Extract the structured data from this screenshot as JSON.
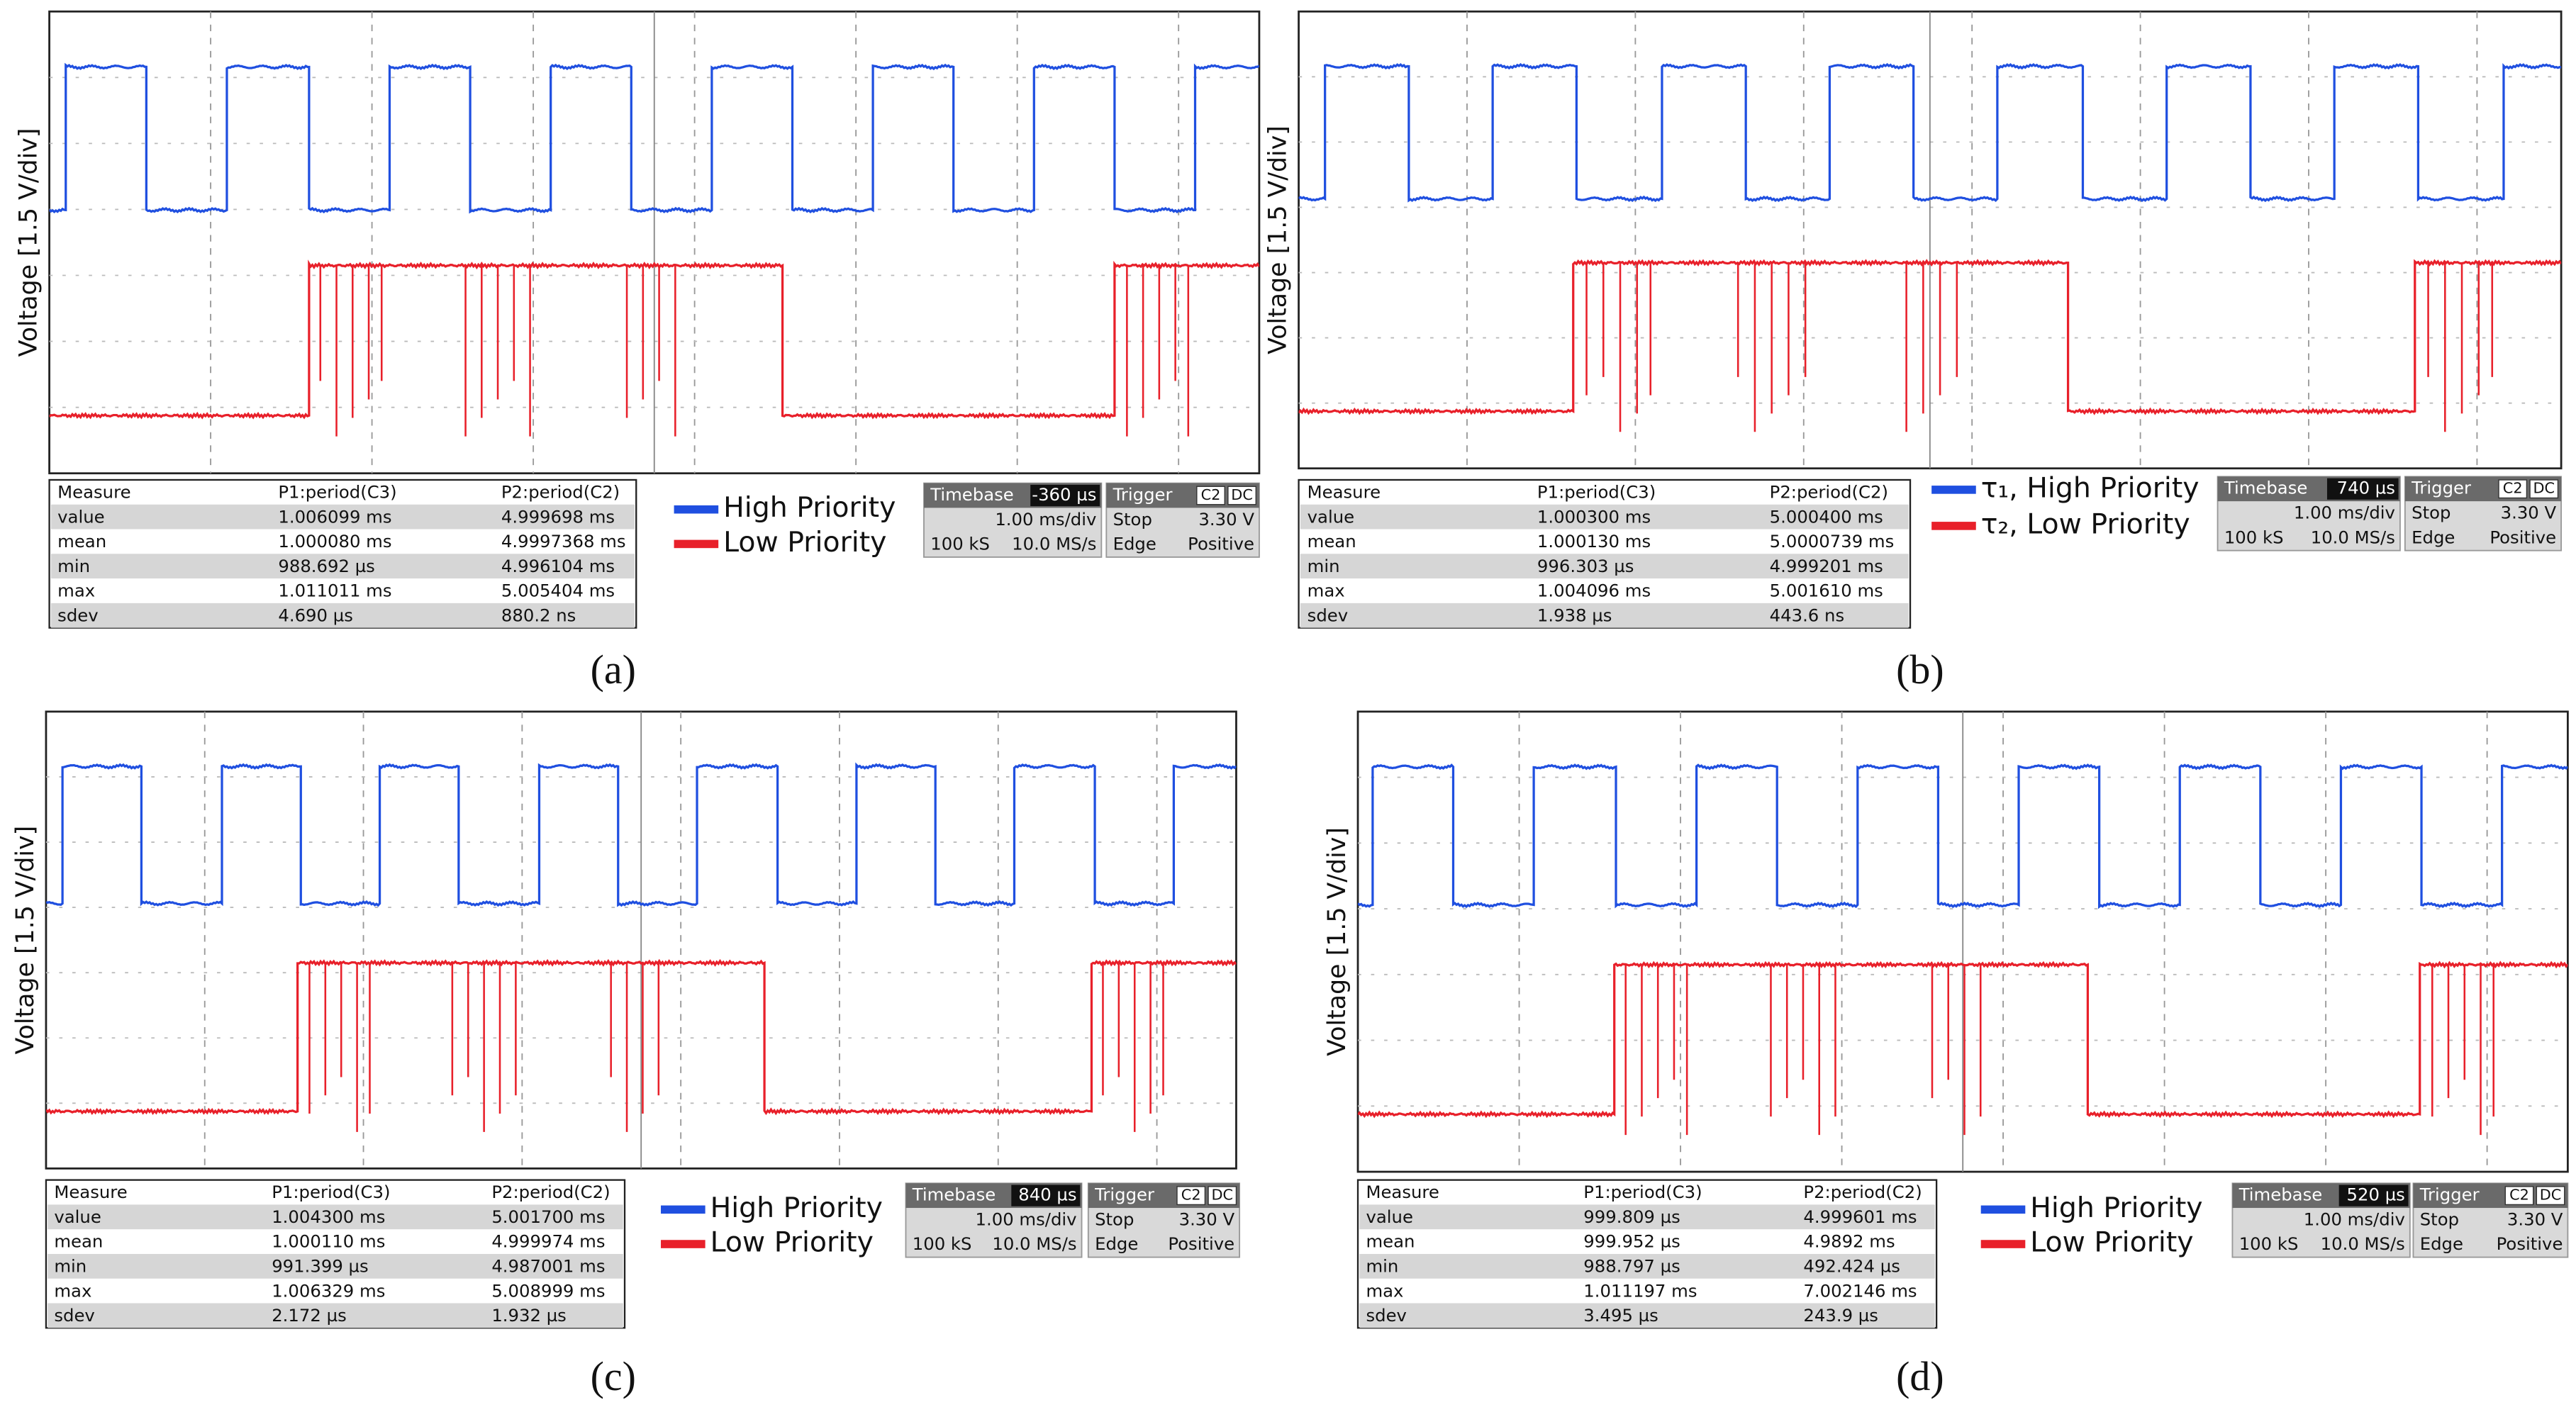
{
  "panels": [
    {
      "label": "(a)",
      "y_axis_label": "Voltage [1.5 V/div]",
      "legend": [
        "High Priority",
        "Low Priority"
      ],
      "measure": {
        "header": [
          "Measure",
          "P1:period(C3)",
          "P2:period(C2)"
        ],
        "rows": [
          [
            "value",
            "1.006099 ms",
            "4.999698 ms"
          ],
          [
            "mean",
            "1.000080 ms",
            "4.9997368 ms"
          ],
          [
            "min",
            "988.692 µs",
            "4.996104 ms"
          ],
          [
            "max",
            "1.011011 ms",
            "5.005404 ms"
          ],
          [
            "sdev",
            "4.690 µs",
            "880.2 ns"
          ]
        ]
      },
      "timebase": {
        "title": "Timebase",
        "offset": "-360 µs",
        "scale": "1.00 ms/div",
        "samples": "100 kS",
        "rate": "10.0 MS/s"
      },
      "trigger": {
        "title": "Trigger",
        "channel": "C2",
        "coupling": "DC",
        "mode": "Stop",
        "level": "3.30 V",
        "type": "Edge",
        "slope": "Positive"
      }
    },
    {
      "label": "(b)",
      "y_axis_label": "Voltage [1.5 V/div]",
      "legend": [
        "τ₁, High Priority",
        "τ₂, Low Priority"
      ],
      "measure": {
        "header": [
          "Measure",
          "P1:period(C3)",
          "P2:period(C2)"
        ],
        "rows": [
          [
            "value",
            "1.000300 ms",
            "5.000400 ms"
          ],
          [
            "mean",
            "1.000130 ms",
            "5.0000739 ms"
          ],
          [
            "min",
            "996.303 µs",
            "4.999201 ms"
          ],
          [
            "max",
            "1.004096 ms",
            "5.001610 ms"
          ],
          [
            "sdev",
            "1.938 µs",
            "443.6 ns"
          ]
        ]
      },
      "timebase": {
        "title": "Timebase",
        "offset": "740 µs",
        "scale": "1.00 ms/div",
        "samples": "100 kS",
        "rate": "10.0 MS/s"
      },
      "trigger": {
        "title": "Trigger",
        "channel": "C2",
        "coupling": "DC",
        "mode": "Stop",
        "level": "3.30 V",
        "type": "Edge",
        "slope": "Positive"
      }
    },
    {
      "label": "(c)",
      "y_axis_label": "Voltage [1.5 V/div]",
      "legend": [
        "High Priority",
        "Low Priority"
      ],
      "measure": {
        "header": [
          "Measure",
          "P1:period(C3)",
          "P2:period(C2)"
        ],
        "rows": [
          [
            "value",
            "1.004300 ms",
            "5.001700 ms"
          ],
          [
            "mean",
            "1.000110 ms",
            "4.999974 ms"
          ],
          [
            "min",
            "991.399 µs",
            "4.987001 ms"
          ],
          [
            "max",
            "1.006329 ms",
            "5.008999 ms"
          ],
          [
            "sdev",
            "2.172 µs",
            "1.932 µs"
          ]
        ]
      },
      "timebase": {
        "title": "Timebase",
        "offset": "840 µs",
        "scale": "1.00 ms/div",
        "samples": "100 kS",
        "rate": "10.0 MS/s"
      },
      "trigger": {
        "title": "Trigger",
        "channel": "C2",
        "coupling": "DC",
        "mode": "Stop",
        "level": "3.30 V",
        "type": "Edge",
        "slope": "Positive"
      }
    },
    {
      "label": "(d)",
      "y_axis_label": "Voltage [1.5 V/div]",
      "legend": [
        "High Priority",
        "Low Priority"
      ],
      "measure": {
        "header": [
          "Measure",
          "P1:period(C3)",
          "P2:period(C2)"
        ],
        "rows": [
          [
            "value",
            "999.809 µs",
            "4.999601 ms"
          ],
          [
            "mean",
            "999.952 µs",
            "4.9892 ms"
          ],
          [
            "min",
            "988.797 µs",
            "492.424 µs"
          ],
          [
            "max",
            "1.011197 ms",
            "7.002146 ms"
          ],
          [
            "sdev",
            "3.495 µs",
            "243.9 µs"
          ]
        ]
      },
      "timebase": {
        "title": "Timebase",
        "offset": "520 µs",
        "scale": "1.00 ms/div",
        "samples": "100 kS",
        "rate": "10.0 MS/s"
      },
      "trigger": {
        "title": "Trigger",
        "channel": "C2",
        "coupling": "DC",
        "mode": "Stop",
        "level": "3.30 V",
        "type": "Edge",
        "slope": "Positive"
      }
    }
  ]
}
